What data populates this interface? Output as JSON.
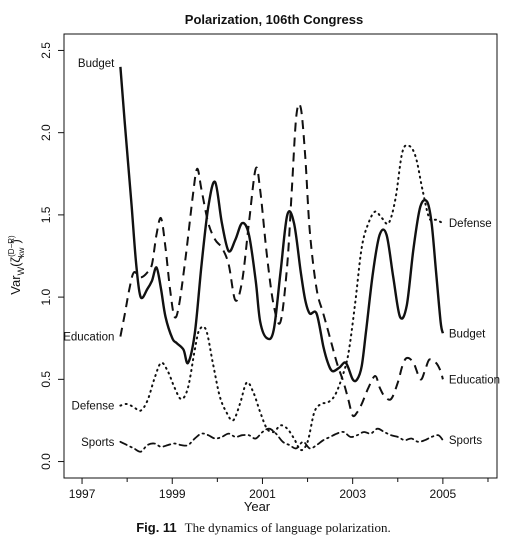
{
  "caption": {
    "label": "Fig. 11",
    "text": "The dynamics of language polarization."
  },
  "chart_data": {
    "type": "line",
    "title": "Polarization, 106th Congress",
    "xlabel": "Year",
    "ylabel": "Var",
    "ylabel_subscript": "W",
    "ylabel_greek": "(ζ",
    "ylabel_greek_super": "(D−R)",
    "ylabel_greek_sub": "kw",
    "ylabel_close": ")",
    "xlim": [
      1996.6,
      2006.2
    ],
    "ylim": [
      -0.1,
      2.6
    ],
    "x_ticks": [
      1997,
      1999,
      2001,
      2003,
      2005
    ],
    "x_tick_labels": [
      "1997",
      "1999",
      "2001",
      "2003",
      "2005"
    ],
    "y_ticks": [
      0.0,
      0.5,
      1.0,
      1.5,
      2.0,
      2.5
    ],
    "y_tick_labels": [
      "0.0",
      "0.5",
      "1.0",
      "1.5",
      "2.0",
      "2.5"
    ],
    "grid": false,
    "series": [
      {
        "name": "Budget",
        "style": "solid",
        "label_start": "Budget",
        "label_end": "Budget",
        "x": [
          1997.85,
          1997.95,
          1998.1,
          1998.2,
          1998.3,
          1998.45,
          1998.55,
          1998.65,
          1998.75,
          1998.85,
          1999.0,
          1999.1,
          1999.25,
          1999.35,
          1999.5,
          1999.65,
          1999.8,
          1999.95,
          2000.1,
          2000.25,
          2000.4,
          2000.55,
          2000.7,
          2000.85,
          2000.95,
          2001.1,
          2001.25,
          2001.4,
          2001.55,
          2001.7,
          2001.85,
          2001.95,
          2002.05,
          2002.2,
          2002.35,
          2002.45,
          2002.55,
          2002.7,
          2002.85,
          2003.0,
          2003.1,
          2003.2,
          2003.3,
          2003.45,
          2003.6,
          2003.75,
          2003.9,
          2004.05,
          2004.2,
          2004.35,
          2004.5,
          2004.65,
          2004.75,
          2004.85,
          2004.95,
          2005.0
        ],
        "y": [
          2.4,
          2.05,
          1.55,
          1.2,
          1.0,
          1.05,
          1.1,
          1.18,
          1.05,
          0.88,
          0.75,
          0.72,
          0.68,
          0.6,
          0.78,
          1.2,
          1.55,
          1.7,
          1.45,
          1.28,
          1.35,
          1.45,
          1.38,
          1.1,
          0.85,
          0.75,
          0.8,
          1.15,
          1.5,
          1.45,
          1.15,
          0.98,
          0.9,
          0.9,
          0.7,
          0.6,
          0.55,
          0.57,
          0.6,
          0.5,
          0.5,
          0.58,
          0.8,
          1.15,
          1.38,
          1.38,
          1.12,
          0.88,
          0.95,
          1.3,
          1.55,
          1.58,
          1.45,
          1.15,
          0.85,
          0.78
        ]
      },
      {
        "name": "Education",
        "style": "dashed",
        "label_start": "Education",
        "label_end": "Education",
        "x": [
          1997.85,
          1997.95,
          1998.05,
          1998.15,
          1998.3,
          1998.45,
          1998.55,
          1998.65,
          1998.75,
          1998.85,
          1998.95,
          1999.05,
          1999.15,
          1999.3,
          1999.45,
          1999.55,
          1999.65,
          1999.8,
          1999.95,
          2000.1,
          2000.25,
          2000.4,
          2000.55,
          2000.7,
          2000.85,
          2000.95,
          2001.1,
          2001.25,
          2001.4,
          2001.55,
          2001.65,
          2001.75,
          2001.85,
          2001.95,
          2002.05,
          2002.2,
          2002.35,
          2002.5,
          2002.65,
          2002.8,
          2002.9,
          2003.0,
          2003.1,
          2003.2,
          2003.35,
          2003.5,
          2003.6,
          2003.7,
          2003.85,
          2004.0,
          2004.1,
          2004.2,
          2004.35,
          2004.5,
          2004.6,
          2004.7,
          2004.85,
          2004.95,
          2005.0
        ],
        "y": [
          0.76,
          0.9,
          1.05,
          1.15,
          1.12,
          1.15,
          1.2,
          1.38,
          1.48,
          1.3,
          1.05,
          0.88,
          0.95,
          1.25,
          1.6,
          1.78,
          1.65,
          1.45,
          1.35,
          1.3,
          1.2,
          0.98,
          1.1,
          1.45,
          1.78,
          1.65,
          1.25,
          0.95,
          0.85,
          1.2,
          1.65,
          2.1,
          2.15,
          1.85,
          1.4,
          1.05,
          0.9,
          0.75,
          0.6,
          0.48,
          0.38,
          0.28,
          0.3,
          0.35,
          0.45,
          0.52,
          0.45,
          0.4,
          0.38,
          0.48,
          0.58,
          0.63,
          0.6,
          0.5,
          0.55,
          0.62,
          0.6,
          0.55,
          0.5
        ]
      },
      {
        "name": "Defense",
        "style": "dotted",
        "label_start": "Defense",
        "label_end": "Defense",
        "x": [
          1997.85,
          1998.0,
          1998.15,
          1998.3,
          1998.45,
          1998.6,
          1998.75,
          1998.9,
          1999.05,
          1999.2,
          1999.35,
          1999.5,
          1999.6,
          1999.75,
          1999.9,
          2000.05,
          2000.2,
          2000.35,
          2000.5,
          2000.65,
          2000.8,
          2000.95,
          2001.1,
          2001.25,
          2001.4,
          2001.55,
          2001.7,
          2001.85,
          2002.0,
          2002.15,
          2002.3,
          2002.45,
          2002.6,
          2002.75,
          2002.9,
          2003.05,
          2003.2,
          2003.35,
          2003.5,
          2003.65,
          2003.8,
          2003.95,
          2004.1,
          2004.25,
          2004.4,
          2004.55,
          2004.7,
          2004.85,
          2005.0
        ],
        "y": [
          0.34,
          0.35,
          0.33,
          0.31,
          0.37,
          0.5,
          0.6,
          0.55,
          0.45,
          0.38,
          0.45,
          0.68,
          0.8,
          0.8,
          0.6,
          0.4,
          0.3,
          0.25,
          0.35,
          0.48,
          0.42,
          0.3,
          0.2,
          0.18,
          0.22,
          0.2,
          0.14,
          0.07,
          0.12,
          0.3,
          0.35,
          0.36,
          0.4,
          0.5,
          0.65,
          0.95,
          1.3,
          1.45,
          1.52,
          1.48,
          1.45,
          1.6,
          1.88,
          1.92,
          1.85,
          1.65,
          1.48,
          1.47,
          1.45
        ]
      },
      {
        "name": "Sports",
        "style": "dashdot",
        "label_start": "Sports",
        "label_end": "Sports",
        "x": [
          1997.85,
          1998.0,
          1998.15,
          1998.3,
          1998.45,
          1998.6,
          1998.75,
          1998.9,
          1999.05,
          1999.2,
          1999.35,
          1999.5,
          1999.65,
          1999.8,
          1999.95,
          2000.1,
          2000.25,
          2000.4,
          2000.55,
          2000.7,
          2000.85,
          2001.0,
          2001.15,
          2001.3,
          2001.45,
          2001.6,
          2001.75,
          2001.9,
          2002.05,
          2002.2,
          2002.35,
          2002.5,
          2002.65,
          2002.8,
          2002.95,
          2003.1,
          2003.25,
          2003.4,
          2003.55,
          2003.7,
          2003.85,
          2004.0,
          2004.15,
          2004.3,
          2004.45,
          2004.6,
          2004.75,
          2004.9,
          2005.0
        ],
        "y": [
          0.12,
          0.1,
          0.08,
          0.06,
          0.1,
          0.11,
          0.09,
          0.1,
          0.11,
          0.1,
          0.1,
          0.14,
          0.17,
          0.16,
          0.14,
          0.15,
          0.17,
          0.15,
          0.16,
          0.16,
          0.14,
          0.18,
          0.2,
          0.17,
          0.12,
          0.1,
          0.08,
          0.12,
          0.08,
          0.1,
          0.13,
          0.15,
          0.17,
          0.18,
          0.15,
          0.16,
          0.18,
          0.17,
          0.2,
          0.18,
          0.16,
          0.15,
          0.13,
          0.14,
          0.12,
          0.13,
          0.15,
          0.16,
          0.13
        ]
      }
    ]
  }
}
